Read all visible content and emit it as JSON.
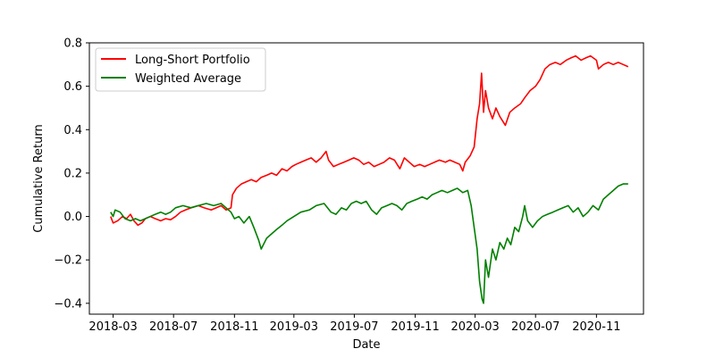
{
  "chart_data": {
    "type": "line",
    "title": "",
    "xlabel": "Date",
    "ylabel": "Cumulative Return",
    "ylim": [
      -0.45,
      0.8
    ],
    "xlim": [
      "2018-01-12",
      "2021-02-04"
    ],
    "x_ticks": [
      "2018-03-01",
      "2018-07-01",
      "2018-11-01",
      "2019-03-01",
      "2019-07-01",
      "2019-11-01",
      "2020-03-01",
      "2020-07-01",
      "2020-11-01"
    ],
    "x_tick_labels": [
      "2018-03",
      "2018-07",
      "2018-11",
      "2019-03",
      "2019-07",
      "2019-11",
      "2020-03",
      "2020-07",
      "2020-11"
    ],
    "y_ticks": [
      -0.4,
      -0.2,
      0.0,
      0.2,
      0.4,
      0.6,
      0.8
    ],
    "y_tick_labels": [
      "−0.4",
      "−0.2",
      "0.0",
      "0.2",
      "0.4",
      "0.6",
      "0.8"
    ],
    "grid": false,
    "legend_position": "top-left",
    "series": [
      {
        "name": "Long-Short Portfolio",
        "color": "#ff0000",
        "points": [
          [
            "2018-02-24",
            0.0
          ],
          [
            "2018-03-01",
            -0.03
          ],
          [
            "2018-03-10",
            -0.02
          ],
          [
            "2018-03-20",
            0.0
          ],
          [
            "2018-03-28",
            -0.01
          ],
          [
            "2018-04-05",
            0.01
          ],
          [
            "2018-04-12",
            -0.02
          ],
          [
            "2018-04-20",
            -0.04
          ],
          [
            "2018-04-28",
            -0.03
          ],
          [
            "2018-05-05",
            -0.01
          ],
          [
            "2018-05-15",
            0.0
          ],
          [
            "2018-05-25",
            -0.01
          ],
          [
            "2018-06-05",
            -0.02
          ],
          [
            "2018-06-15",
            -0.01
          ],
          [
            "2018-06-25",
            -0.015
          ],
          [
            "2018-07-05",
            0.0
          ],
          [
            "2018-07-15",
            0.02
          ],
          [
            "2018-07-25",
            0.03
          ],
          [
            "2018-08-05",
            0.04
          ],
          [
            "2018-08-20",
            0.05
          ],
          [
            "2018-09-01",
            0.04
          ],
          [
            "2018-09-15",
            0.03
          ],
          [
            "2018-09-25",
            0.04
          ],
          [
            "2018-10-05",
            0.05
          ],
          [
            "2018-10-15",
            0.03
          ],
          [
            "2018-10-25",
            0.04
          ],
          [
            "2018-10-28",
            0.1
          ],
          [
            "2018-11-05",
            0.13
          ],
          [
            "2018-11-15",
            0.15
          ],
          [
            "2018-11-25",
            0.16
          ],
          [
            "2018-12-05",
            0.17
          ],
          [
            "2018-12-15",
            0.16
          ],
          [
            "2018-12-25",
            0.18
          ],
          [
            "2019-01-05",
            0.19
          ],
          [
            "2019-01-15",
            0.2
          ],
          [
            "2019-01-25",
            0.19
          ],
          [
            "2019-02-05",
            0.22
          ],
          [
            "2019-02-15",
            0.21
          ],
          [
            "2019-02-25",
            0.23
          ],
          [
            "2019-03-05",
            0.24
          ],
          [
            "2019-03-15",
            0.25
          ],
          [
            "2019-03-25",
            0.26
          ],
          [
            "2019-04-05",
            0.27
          ],
          [
            "2019-04-15",
            0.25
          ],
          [
            "2019-04-25",
            0.27
          ],
          [
            "2019-05-05",
            0.3
          ],
          [
            "2019-05-10",
            0.26
          ],
          [
            "2019-05-20",
            0.23
          ],
          [
            "2019-05-30",
            0.24
          ],
          [
            "2019-06-10",
            0.25
          ],
          [
            "2019-06-20",
            0.26
          ],
          [
            "2019-06-30",
            0.27
          ],
          [
            "2019-07-10",
            0.26
          ],
          [
            "2019-07-20",
            0.24
          ],
          [
            "2019-07-30",
            0.25
          ],
          [
            "2019-08-10",
            0.23
          ],
          [
            "2019-08-20",
            0.24
          ],
          [
            "2019-08-30",
            0.25
          ],
          [
            "2019-09-10",
            0.27
          ],
          [
            "2019-09-20",
            0.26
          ],
          [
            "2019-10-01",
            0.22
          ],
          [
            "2019-10-10",
            0.27
          ],
          [
            "2019-10-20",
            0.25
          ],
          [
            "2019-10-30",
            0.23
          ],
          [
            "2019-11-10",
            0.24
          ],
          [
            "2019-11-20",
            0.23
          ],
          [
            "2019-11-30",
            0.24
          ],
          [
            "2019-12-10",
            0.25
          ],
          [
            "2019-12-20",
            0.26
          ],
          [
            "2020-01-01",
            0.25
          ],
          [
            "2020-01-10",
            0.26
          ],
          [
            "2020-01-20",
            0.25
          ],
          [
            "2020-01-30",
            0.24
          ],
          [
            "2020-02-05",
            0.21
          ],
          [
            "2020-02-10",
            0.25
          ],
          [
            "2020-02-20",
            0.28
          ],
          [
            "2020-02-28",
            0.32
          ],
          [
            "2020-03-05",
            0.45
          ],
          [
            "2020-03-10",
            0.52
          ],
          [
            "2020-03-14",
            0.66
          ],
          [
            "2020-03-18",
            0.48
          ],
          [
            "2020-03-22",
            0.58
          ],
          [
            "2020-03-28",
            0.5
          ],
          [
            "2020-04-05",
            0.45
          ],
          [
            "2020-04-12",
            0.5
          ],
          [
            "2020-04-20",
            0.46
          ],
          [
            "2020-05-01",
            0.42
          ],
          [
            "2020-05-10",
            0.48
          ],
          [
            "2020-05-20",
            0.5
          ],
          [
            "2020-06-01",
            0.52
          ],
          [
            "2020-06-10",
            0.55
          ],
          [
            "2020-06-20",
            0.58
          ],
          [
            "2020-07-01",
            0.6
          ],
          [
            "2020-07-10",
            0.63
          ],
          [
            "2020-07-20",
            0.68
          ],
          [
            "2020-07-30",
            0.7
          ],
          [
            "2020-08-10",
            0.71
          ],
          [
            "2020-08-20",
            0.7
          ],
          [
            "2020-09-01",
            0.72
          ],
          [
            "2020-09-10",
            0.73
          ],
          [
            "2020-09-20",
            0.74
          ],
          [
            "2020-10-01",
            0.72
          ],
          [
            "2020-10-10",
            0.73
          ],
          [
            "2020-10-20",
            0.74
          ],
          [
            "2020-11-01",
            0.72
          ],
          [
            "2020-11-05",
            0.68
          ],
          [
            "2020-11-15",
            0.7
          ],
          [
            "2020-11-25",
            0.71
          ],
          [
            "2020-12-05",
            0.7
          ],
          [
            "2020-12-15",
            0.71
          ],
          [
            "2020-12-25",
            0.7
          ],
          [
            "2021-01-04",
            0.69
          ]
        ]
      },
      {
        "name": "Weighted Average",
        "color": "#008000",
        "points": [
          [
            "2018-02-24",
            0.02
          ],
          [
            "2018-03-01",
            0.0
          ],
          [
            "2018-03-05",
            0.03
          ],
          [
            "2018-03-15",
            0.02
          ],
          [
            "2018-03-25",
            -0.01
          ],
          [
            "2018-04-05",
            -0.02
          ],
          [
            "2018-04-15",
            -0.01
          ],
          [
            "2018-04-25",
            -0.02
          ],
          [
            "2018-05-05",
            -0.01
          ],
          [
            "2018-05-15",
            0.0
          ],
          [
            "2018-05-25",
            0.01
          ],
          [
            "2018-06-05",
            0.02
          ],
          [
            "2018-06-15",
            0.01
          ],
          [
            "2018-06-25",
            0.02
          ],
          [
            "2018-07-05",
            0.04
          ],
          [
            "2018-07-20",
            0.05
          ],
          [
            "2018-08-05",
            0.04
          ],
          [
            "2018-08-20",
            0.05
          ],
          [
            "2018-09-05",
            0.06
          ],
          [
            "2018-09-20",
            0.05
          ],
          [
            "2018-10-05",
            0.06
          ],
          [
            "2018-10-15",
            0.04
          ],
          [
            "2018-10-25",
            0.02
          ],
          [
            "2018-11-01",
            -0.01
          ],
          [
            "2018-11-10",
            0.0
          ],
          [
            "2018-11-20",
            -0.03
          ],
          [
            "2018-12-01",
            0.0
          ],
          [
            "2018-12-10",
            -0.05
          ],
          [
            "2018-12-20",
            -0.11
          ],
          [
            "2018-12-25",
            -0.15
          ],
          [
            "2019-01-05",
            -0.1
          ],
          [
            "2019-01-15",
            -0.08
          ],
          [
            "2019-01-25",
            -0.06
          ],
          [
            "2019-02-05",
            -0.04
          ],
          [
            "2019-02-15",
            -0.02
          ],
          [
            "2019-03-01",
            0.0
          ],
          [
            "2019-03-15",
            0.02
          ],
          [
            "2019-04-01",
            0.03
          ],
          [
            "2019-04-15",
            0.05
          ],
          [
            "2019-05-01",
            0.06
          ],
          [
            "2019-05-15",
            0.02
          ],
          [
            "2019-05-25",
            0.01
          ],
          [
            "2019-06-05",
            0.04
          ],
          [
            "2019-06-15",
            0.03
          ],
          [
            "2019-06-25",
            0.06
          ],
          [
            "2019-07-05",
            0.07
          ],
          [
            "2019-07-15",
            0.06
          ],
          [
            "2019-07-25",
            0.07
          ],
          [
            "2019-08-05",
            0.03
          ],
          [
            "2019-08-15",
            0.01
          ],
          [
            "2019-08-25",
            0.04
          ],
          [
            "2019-09-05",
            0.05
          ],
          [
            "2019-09-15",
            0.06
          ],
          [
            "2019-09-25",
            0.05
          ],
          [
            "2019-10-05",
            0.03
          ],
          [
            "2019-10-15",
            0.06
          ],
          [
            "2019-10-25",
            0.07
          ],
          [
            "2019-11-05",
            0.08
          ],
          [
            "2019-11-15",
            0.09
          ],
          [
            "2019-11-25",
            0.08
          ],
          [
            "2019-12-05",
            0.1
          ],
          [
            "2019-12-15",
            0.11
          ],
          [
            "2019-12-25",
            0.12
          ],
          [
            "2020-01-05",
            0.11
          ],
          [
            "2020-01-15",
            0.12
          ],
          [
            "2020-01-25",
            0.13
          ],
          [
            "2020-02-05",
            0.11
          ],
          [
            "2020-02-15",
            0.12
          ],
          [
            "2020-02-22",
            0.05
          ],
          [
            "2020-02-28",
            -0.05
          ],
          [
            "2020-03-05",
            -0.15
          ],
          [
            "2020-03-10",
            -0.3
          ],
          [
            "2020-03-15",
            -0.38
          ],
          [
            "2020-03-18",
            -0.4
          ],
          [
            "2020-03-22",
            -0.2
          ],
          [
            "2020-03-28",
            -0.28
          ],
          [
            "2020-04-05",
            -0.15
          ],
          [
            "2020-04-12",
            -0.2
          ],
          [
            "2020-04-20",
            -0.12
          ],
          [
            "2020-04-28",
            -0.15
          ],
          [
            "2020-05-05",
            -0.1
          ],
          [
            "2020-05-12",
            -0.13
          ],
          [
            "2020-05-20",
            -0.05
          ],
          [
            "2020-05-28",
            -0.07
          ],
          [
            "2020-06-05",
            0.0
          ],
          [
            "2020-06-09",
            0.05
          ],
          [
            "2020-06-15",
            -0.02
          ],
          [
            "2020-06-25",
            -0.05
          ],
          [
            "2020-07-05",
            -0.02
          ],
          [
            "2020-07-15",
            0.0
          ],
          [
            "2020-07-25",
            0.01
          ],
          [
            "2020-08-05",
            0.02
          ],
          [
            "2020-08-15",
            0.03
          ],
          [
            "2020-08-25",
            0.04
          ],
          [
            "2020-09-05",
            0.05
          ],
          [
            "2020-09-15",
            0.02
          ],
          [
            "2020-09-25",
            0.04
          ],
          [
            "2020-10-05",
            0.0
          ],
          [
            "2020-10-15",
            0.02
          ],
          [
            "2020-10-25",
            0.05
          ],
          [
            "2020-11-05",
            0.03
          ],
          [
            "2020-11-15",
            0.08
          ],
          [
            "2020-11-25",
            0.1
          ],
          [
            "2020-12-05",
            0.12
          ],
          [
            "2020-12-15",
            0.14
          ],
          [
            "2020-12-25",
            0.15
          ],
          [
            "2021-01-04",
            0.15
          ]
        ]
      }
    ]
  }
}
